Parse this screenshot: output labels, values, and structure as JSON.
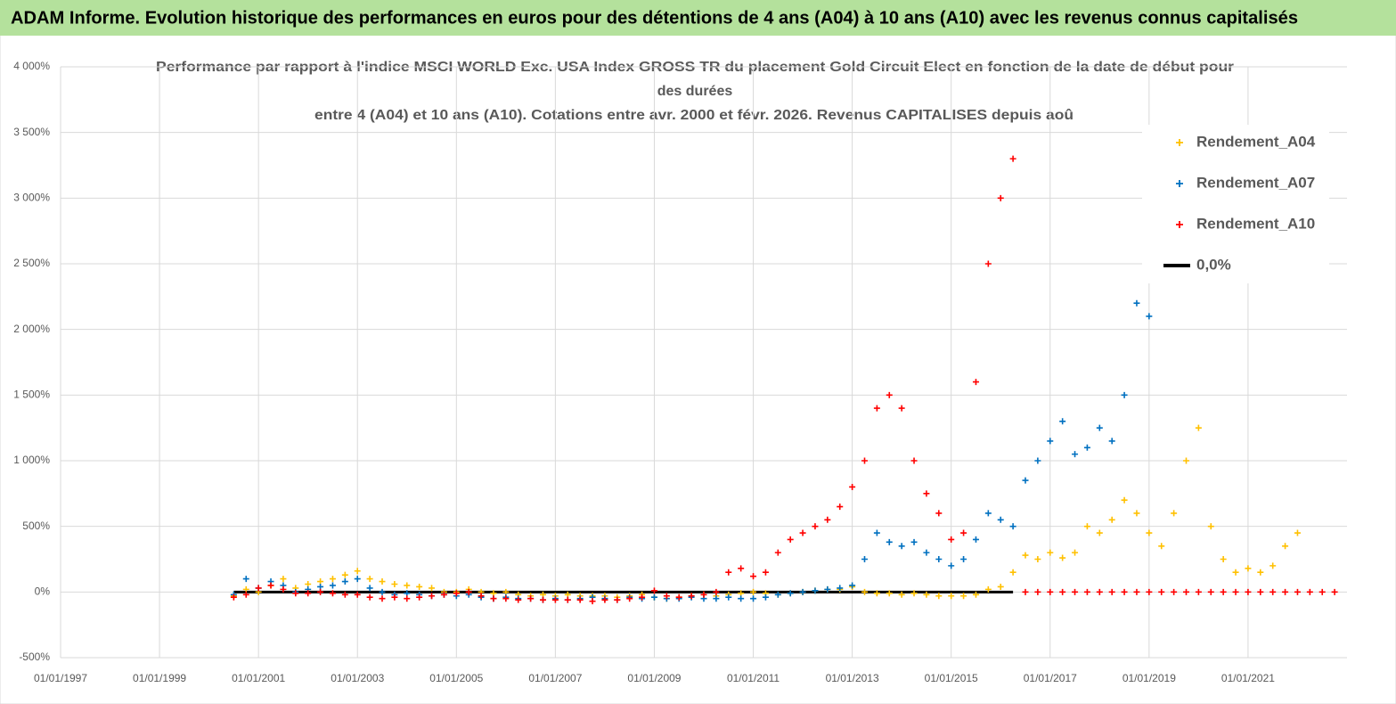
{
  "header": {
    "title": "ADAM Informe. Evolution historique des performances en euros pour des détentions de 4 ans (A04) à 10 ans (A10) avec les revenus connus capitalisés"
  },
  "chart_data": {
    "type": "scatter",
    "title": [
      "Performance par rapport à l'indice MSCI WORLD Exc. USA Index GROSS TR  du placement Gold Circuit Elect  en fonction de la date de début pour",
      "des durées",
      "entre 4 (A04) et 10 ans (A10). Cotations entre avr. 2000 et févr. 2026. Revenus CAPITALISES depuis aoû"
    ],
    "x": [
      "01/07/2000",
      "01/10/2000",
      "01/01/2001",
      "01/04/2001",
      "01/07/2001",
      "01/10/2001",
      "01/01/2002",
      "01/04/2002",
      "01/07/2002",
      "01/10/2002",
      "01/01/2003",
      "01/04/2003",
      "01/07/2003",
      "01/10/2003",
      "01/01/2004",
      "01/04/2004",
      "01/07/2004",
      "01/10/2004",
      "01/01/2005",
      "01/04/2005",
      "01/07/2005",
      "01/10/2005",
      "01/01/2006",
      "01/04/2006",
      "01/07/2006",
      "01/10/2006",
      "01/01/2007",
      "01/04/2007",
      "01/07/2007",
      "01/10/2007",
      "01/01/2008",
      "01/04/2008",
      "01/07/2008",
      "01/10/2008",
      "01/01/2009",
      "01/04/2009",
      "01/07/2009",
      "01/10/2009",
      "01/01/2010",
      "01/04/2010",
      "01/07/2010",
      "01/10/2010",
      "01/01/2011",
      "01/04/2011",
      "01/07/2011",
      "01/10/2011",
      "01/01/2012",
      "01/04/2012",
      "01/07/2012",
      "01/10/2012",
      "01/01/2013",
      "01/04/2013",
      "01/07/2013",
      "01/10/2013",
      "01/01/2014",
      "01/04/2014",
      "01/07/2014",
      "01/10/2014",
      "01/01/2015",
      "01/04/2015",
      "01/07/2015",
      "01/10/2015",
      "01/01/2016",
      "01/04/2016",
      "01/07/2016",
      "01/10/2016",
      "01/01/2017",
      "01/04/2017",
      "01/07/2017",
      "01/10/2017",
      "01/01/2018",
      "01/04/2018",
      "01/07/2018",
      "01/10/2018",
      "01/01/2019",
      "01/04/2019",
      "01/07/2019",
      "01/10/2019",
      "01/01/2020",
      "01/04/2020",
      "01/07/2020",
      "01/10/2020",
      "01/01/2021",
      "01/04/2021",
      "01/07/2021",
      "01/10/2021",
      "01/01/2022",
      "01/04/2022",
      "01/07/2022",
      "01/10/2022"
    ],
    "series": [
      {
        "name": "Rendement_A04",
        "color": "#ffc000",
        "style": "marker",
        "values": [
          -30,
          20,
          0,
          50,
          100,
          30,
          60,
          80,
          100,
          130,
          160,
          100,
          80,
          60,
          50,
          40,
          30,
          0,
          0,
          20,
          0,
          -10,
          0,
          -20,
          -30,
          -20,
          -30,
          -20,
          -30,
          -30,
          -30,
          -40,
          -30,
          -20,
          -40,
          -50,
          -40,
          -30,
          -20,
          -30,
          -20,
          -10,
          0,
          -10,
          -20,
          -10,
          0,
          10,
          20,
          20,
          40,
          0,
          -10,
          -10,
          -20,
          -10,
          -20,
          -30,
          -30,
          -30,
          -20,
          20,
          40,
          150,
          280,
          250,
          300,
          260,
          300,
          500,
          450,
          550,
          700,
          600,
          450,
          350,
          600,
          1000,
          1250,
          500,
          250,
          150,
          180,
          150,
          200,
          350,
          450,
          null,
          null,
          null
        ]
      },
      {
        "name": "Rendement_A07",
        "color": "#0070c0",
        "style": "marker",
        "values": [
          -20,
          100,
          30,
          80,
          50,
          0,
          20,
          40,
          50,
          80,
          100,
          30,
          0,
          -20,
          -10,
          -20,
          -30,
          -20,
          -30,
          -20,
          -40,
          -50,
          -40,
          -50,
          -50,
          -60,
          -50,
          -60,
          -50,
          -40,
          -50,
          -60,
          -40,
          -50,
          -40,
          -50,
          -50,
          -40,
          -50,
          -50,
          -40,
          -50,
          -50,
          -40,
          -20,
          -10,
          0,
          10,
          20,
          30,
          50,
          250,
          450,
          380,
          350,
          380,
          300,
          250,
          200,
          250,
          400,
          600,
          550,
          500,
          850,
          1000,
          1150,
          1300,
          1050,
          1100,
          1250,
          1150,
          1500,
          2200,
          2100,
          null,
          null,
          null,
          null,
          null,
          null,
          null,
          null,
          null,
          null,
          null,
          null,
          null,
          null,
          null
        ]
      },
      {
        "name": "Rendement_A10",
        "color": "#ff0000",
        "style": "marker",
        "values": [
          -40,
          -20,
          30,
          50,
          20,
          -10,
          -10,
          0,
          -10,
          -20,
          -20,
          -40,
          -50,
          -40,
          -50,
          -40,
          -30,
          -20,
          -10,
          0,
          -30,
          -50,
          -50,
          -60,
          -50,
          -60,
          -60,
          -60,
          -60,
          -70,
          -60,
          -60,
          -50,
          -40,
          10,
          -30,
          -40,
          -30,
          -20,
          0,
          150,
          180,
          120,
          150,
          300,
          400,
          450,
          500,
          550,
          650,
          800,
          1000,
          1400,
          1500,
          1400,
          1000,
          750,
          600,
          400,
          450,
          1600,
          2500,
          3000,
          3300,
          0,
          0,
          0,
          0,
          0,
          0,
          0,
          0,
          0,
          0,
          0,
          0,
          0,
          0,
          0,
          0,
          0,
          0,
          0,
          0,
          0,
          0,
          0,
          0,
          0,
          0
        ]
      },
      {
        "name": "0,0%",
        "color": "#000000",
        "style": "line",
        "values": [
          0,
          0,
          0,
          0,
          0,
          0,
          0,
          0,
          0,
          0,
          0,
          0,
          0,
          0,
          0,
          0,
          0,
          0,
          0,
          0,
          0,
          0,
          0,
          0,
          0,
          0,
          0,
          0,
          0,
          0,
          0,
          0,
          0,
          0,
          0,
          0,
          0,
          0,
          0,
          0,
          0,
          0,
          0,
          0,
          0,
          0,
          0,
          0,
          0,
          0,
          0,
          0,
          0,
          0,
          0,
          0,
          0,
          0,
          0,
          0,
          0,
          0,
          0,
          0,
          null,
          null,
          null,
          null,
          null,
          null,
          null,
          null,
          null,
          null,
          null,
          null,
          null,
          null,
          null,
          null,
          null,
          null,
          null,
          null,
          null,
          null,
          null,
          null,
          null,
          null
        ]
      }
    ],
    "xlim": [
      "01/01/1997",
      "01/01/2023"
    ],
    "xticks": [
      "01/01/1997",
      "01/01/1999",
      "01/01/2001",
      "01/01/2003",
      "01/01/2005",
      "01/01/2007",
      "01/01/2009",
      "01/01/2011",
      "01/01/2013",
      "01/01/2015",
      "01/01/2017",
      "01/01/2019",
      "01/01/2021"
    ],
    "ylim": [
      -500,
      4000
    ],
    "yticks": [
      {
        "value": -500,
        "label": "-500%"
      },
      {
        "value": 0,
        "label": "0%"
      },
      {
        "value": 500,
        "label": "500%"
      },
      {
        "value": 1000,
        "label": "1 000%"
      },
      {
        "value": 1500,
        "label": "1 500%"
      },
      {
        "value": 2000,
        "label": "2 000%"
      },
      {
        "value": 2500,
        "label": "2 500%"
      },
      {
        "value": 3000,
        "label": "3 000%"
      },
      {
        "value": 3500,
        "label": "3 500%"
      },
      {
        "value": 4000,
        "label": "4 000%"
      }
    ],
    "grid": true,
    "legend": "right"
  }
}
